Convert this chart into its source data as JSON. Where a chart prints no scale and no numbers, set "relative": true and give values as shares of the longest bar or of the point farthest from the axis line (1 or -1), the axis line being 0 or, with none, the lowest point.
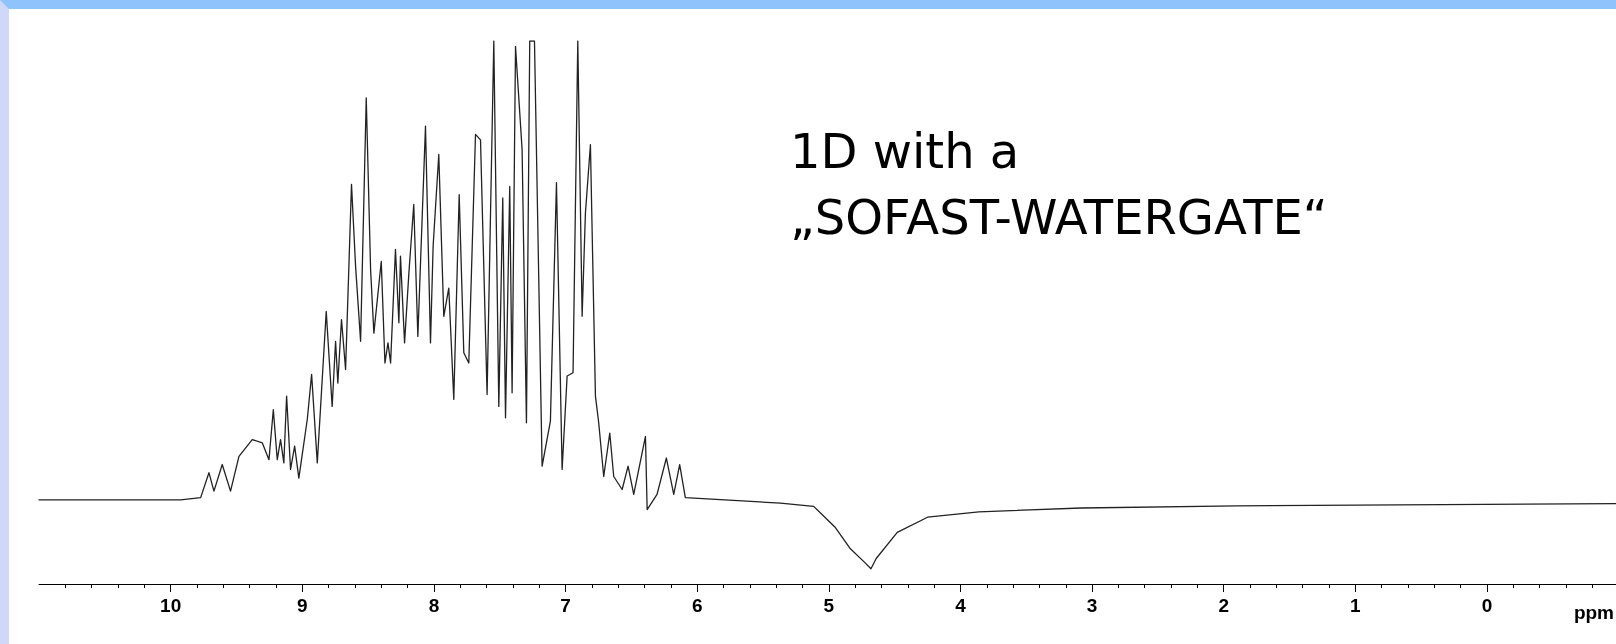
{
  "chart_data": {
    "type": "line",
    "relative": true,
    "xlabel": "ppm",
    "annotations": [
      "1D with a\n„SOFAST-WATERGATE“"
    ],
    "x": [
      11.0,
      9.924,
      9.772,
      9.709,
      9.671,
      9.608,
      9.545,
      9.481,
      9.38,
      9.304,
      9.253,
      9.22,
      9.19,
      9.165,
      9.14,
      9.119,
      9.089,
      9.058,
      9.026,
      8.962,
      8.929,
      8.886,
      8.818,
      8.773,
      8.747,
      8.73,
      8.702,
      8.671,
      8.626,
      8.595,
      8.557,
      8.514,
      8.481,
      8.456,
      8.4,
      8.372,
      8.349,
      8.329,
      8.292,
      8.266,
      8.254,
      8.223,
      8.19,
      8.153,
      8.122,
      8.064,
      8.026,
      8.006,
      7.963,
      7.925,
      7.887,
      7.849,
      7.808,
      7.773,
      7.735,
      7.684,
      7.646,
      7.596,
      7.545,
      7.507,
      7.477,
      7.456,
      7.424,
      7.406,
      7.38,
      7.33,
      7.297,
      7.272,
      7.236,
      7.178,
      7.115,
      7.069,
      7.026,
      6.988,
      6.943,
      6.907,
      6.874,
      6.849,
      6.811,
      6.773,
      6.748,
      6.71,
      6.664,
      6.634,
      6.57,
      6.525,
      6.482,
      6.393,
      6.38,
      6.305,
      6.234,
      6.178,
      6.133,
      6.09,
      5.368,
      5.115,
      4.95,
      4.84,
      4.72,
      4.68,
      4.64,
      4.48,
      4.25,
      3.86,
      3.08,
      1.9,
      0.34,
      -0.98
    ],
    "series": [
      {
        "color": "#222222",
        "values": [
          0.155,
          0.155,
          0.159,
          0.205,
          0.171,
          0.22,
          0.171,
          0.235,
          0.266,
          0.26,
          0.229,
          0.321,
          0.229,
          0.266,
          0.223,
          0.346,
          0.211,
          0.254,
          0.195,
          0.303,
          0.386,
          0.223,
          0.502,
          0.327,
          0.447,
          0.37,
          0.487,
          0.395,
          0.736,
          0.585,
          0.447,
          0.895,
          0.579,
          0.462,
          0.594,
          0.407,
          0.444,
          0.407,
          0.616,
          0.481,
          0.604,
          0.444,
          0.573,
          0.699,
          0.456,
          0.843,
          0.444,
          0.622,
          0.791,
          0.493,
          0.545,
          0.34,
          0.717,
          0.426,
          0.407,
          0.828,
          0.818,
          0.349,
          1.0,
          0.327,
          0.711,
          0.306,
          0.732,
          0.352,
          0.99,
          0.8,
          0.297,
          1.0,
          1.0,
          0.217,
          0.3,
          0.739,
          0.211,
          0.383,
          0.389,
          1.0,
          0.493,
          0.683,
          0.809,
          0.346,
          0.297,
          0.198,
          0.278,
          0.198,
          0.174,
          0.217,
          0.165,
          0.272,
          0.137,
          0.165,
          0.232,
          0.165,
          0.22,
          0.159,
          0.149,
          0.143,
          0.104,
          0.066,
          0.038,
          0.028,
          0.047,
          0.095,
          0.123,
          0.133,
          0.14,
          0.144,
          0.146,
          0.148
        ]
      }
    ],
    "xlim": [
      11.0,
      -0.98
    ],
    "xticks": [
      10,
      9,
      8,
      7,
      6,
      5,
      4,
      3,
      2,
      1,
      0
    ],
    "grid": false,
    "marker": "none",
    "line_style": "solid"
  }
}
